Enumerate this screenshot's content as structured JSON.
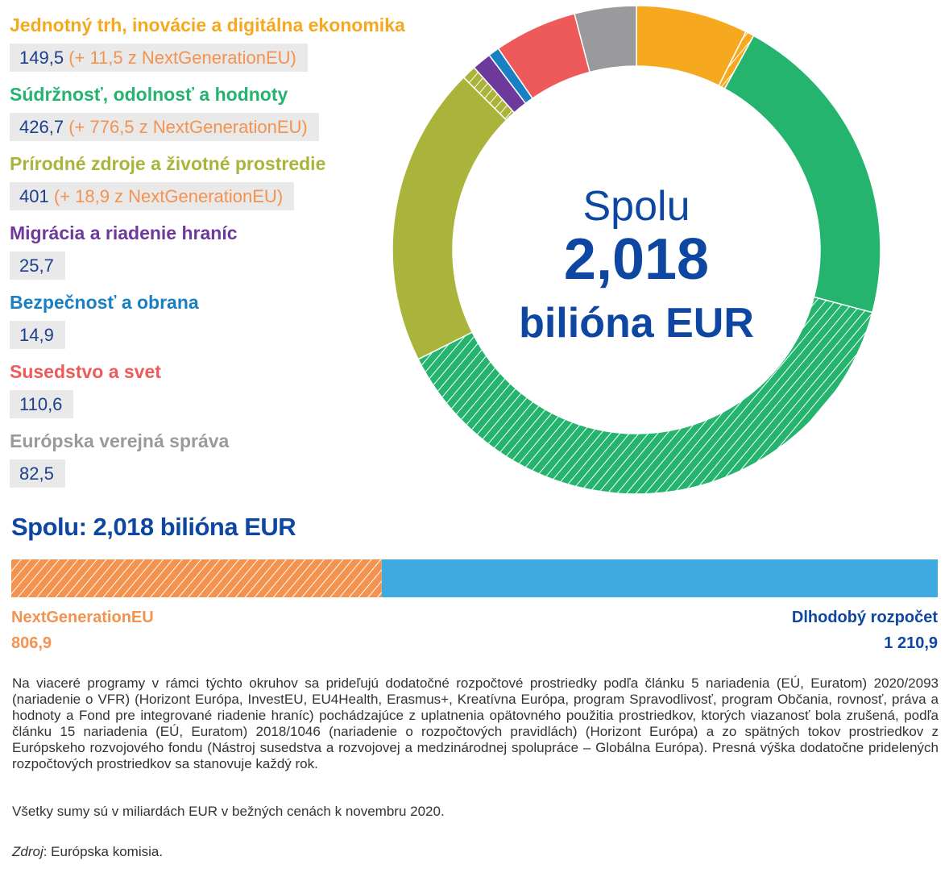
{
  "legend": [
    {
      "label": "Jednotný trh, inovácie a digitálna ekonomika",
      "value": "149,5",
      "extra": "(+ 11,5 z NextGenerationEU)",
      "color": "#f6a81e"
    },
    {
      "label": "Súdržnosť, odolnosť a hodnoty",
      "value": "426,7",
      "extra": "(+ 776,5 z NextGenerationEU)",
      "color": "#24b46d"
    },
    {
      "label": "Prírodné zdroje a životné prostredie",
      "value": "401",
      "extra": "(+ 18,9 z NextGenerationEU)",
      "color": "#aab43a"
    },
    {
      "label": "Migrácia a riadenie hraníc",
      "value": "25,7",
      "extra": "",
      "color": "#6d3a9c"
    },
    {
      "label": "Bezpečnosť a obrana",
      "value": "14,9",
      "extra": "",
      "color": "#1a80c4"
    },
    {
      "label": "Susedstvo a svet",
      "value": "110,6",
      "extra": "",
      "color": "#ee5a5a"
    },
    {
      "label": "Európska verejná správa",
      "value": "82,5",
      "extra": "",
      "color": "#9a9a9c"
    }
  ],
  "center": {
    "spolu": "Spolu",
    "value": "2,018",
    "unit": "bilióna EUR"
  },
  "total_title": "Spolu: 2,018 bilióna EUR",
  "bar": {
    "ngeu_label": "NextGenerationEU",
    "ngeu_value": "806,9",
    "ngeu_color": "#f4924f",
    "mff_label": "Dlhodobý rozpočet",
    "mff_value": "1 210,9",
    "mff_color": "#3eaadf"
  },
  "notes": {
    "main": "Na viaceré programy v rámci týchto okruhov sa prideľujú dodatočné rozpočtové prostriedky podľa článku 5 nariadenia (EÚ, Euratom) 2020/2093 (nariadenie o VFR) (Horizont Európa, InvestEU, EU4Health, Erasmus+, Kreatívna Európa, program Spravodlivosť, program Občania, rovnosť, práva a hodnoty a Fond pre integrované riadenie hraníc) pochádzajúce z uplatnenia opätovného použitia prostriedkov, ktorých viazanosť bola zrušená, podľa článku 15 nariadenia (EÚ, Euratom) 2018/1046 (nariadenie o rozpočtových pravidlách) (Horizont Európa) a zo spätných tokov prostriedkov z Európskeho rozvojového fondu (Nástroj susedstva a rozvojovej a medzinárodnej spolupráce – Globálna Európa). Presná výška dodatočne pridelených rozpočtových prostriedkov sa stanovuje každý rok.",
    "units": "Všetky sumy sú v miliardách EUR v bežných cenách k novembru 2020.",
    "source_label": "Zdroj",
    "source_text": ": Európska komisia."
  },
  "chart_data": [
    {
      "type": "pie",
      "title": "Spolu 2,018 bilióna EUR",
      "categories": [
        "Jednotný trh, inovácie a digitálna ekonomika",
        "Súdržnosť, odolnosť a hodnoty",
        "Prírodné zdroje a životné prostredie",
        "Migrácia a riadenie hraníc",
        "Bezpečnosť a obrana",
        "Susedstvo a svet",
        "Európska verejná správa"
      ],
      "series": [
        {
          "name": "Dlhodobý rozpočet",
          "values": [
            149.5,
            426.7,
            401,
            25.7,
            14.9,
            110.6,
            82.5
          ]
        },
        {
          "name": "NextGenerationEU",
          "values": [
            11.5,
            776.5,
            18.9,
            0,
            0,
            0,
            0
          ]
        }
      ],
      "colors": [
        "#f6a81e",
        "#24b46d",
        "#aab43a",
        "#6d3a9c",
        "#1a80c4",
        "#ee5a5a",
        "#9a9a9c"
      ],
      "hatched_series": "NextGenerationEU"
    },
    {
      "type": "bar",
      "orientation": "horizontal-stacked",
      "title": "Spolu: 2,018 bilióna EUR",
      "categories": [
        "NextGenerationEU",
        "Dlhodobý rozpočet"
      ],
      "values": [
        806.9,
        1210.9
      ]
    }
  ]
}
